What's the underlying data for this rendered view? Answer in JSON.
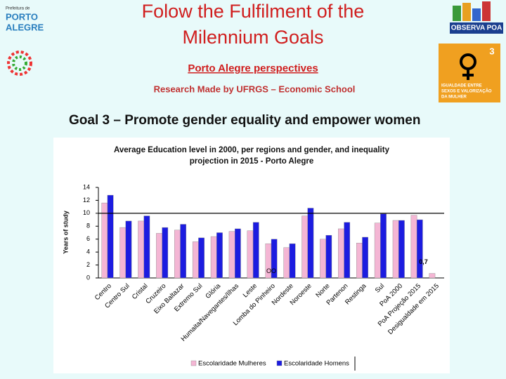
{
  "slide": {
    "title": [
      "Folow the Fulfilment of the",
      "Milennium Goals"
    ],
    "subtitle": "Porto Alegre perspectives",
    "research": "Research Made by UFRGS – Economic School",
    "goal": "Goal 3 – Promote gender equality and empower women"
  },
  "logos": {
    "city": [
      "Prefeitura de",
      "PORTO",
      "ALEGRE"
    ],
    "observa": "OBSERVA POA",
    "goal_number": "3",
    "goal_badge": [
      "IGUALDADE ENTRE",
      "SEXOS E VALORIZAÇÃO",
      "DA MULHER"
    ]
  },
  "chart_data": {
    "type": "bar",
    "title": [
      "Average Education level in 2000, per regions and gender, and inequality",
      "projection in 2015 - Porto Alegre"
    ],
    "y_label": "Years of study",
    "categories": [
      "Centro",
      "Centro Sul",
      "Cristal",
      "Cruzeiro",
      "Eixo Baltazar",
      "Extremo Sul",
      "Glória",
      "Humaita/Navegantes/Ilhas",
      "Leste",
      "Lomba do Pinheiro",
      "Nordeste",
      "Noroeste",
      "Norte",
      "Partenon",
      "Restinga",
      "Sul",
      "PoA 2000",
      "PoA Projeção 2015",
      "Desigualdade em 2015"
    ],
    "series": [
      {
        "name": "Escolaridade Mulheres",
        "color": "#f4b6d4",
        "values": [
          11.6,
          7.8,
          8.8,
          6.9,
          7.4,
          5.6,
          6.4,
          7.2,
          7.3,
          5.3,
          4.7,
          9.6,
          6.0,
          7.6,
          5.4,
          8.5,
          8.9,
          9.7,
          0.7
        ],
        "value_labels": [
          null,
          null,
          null,
          null,
          null,
          null,
          null,
          null,
          null,
          null,
          null,
          null,
          null,
          null,
          null,
          null,
          null,
          null,
          "0,7"
        ]
      },
      {
        "name": "Escolaridade Homens",
        "color": "#1c1ce0",
        "values": [
          12.8,
          8.8,
          9.6,
          7.8,
          8.3,
          6.2,
          7.0,
          7.6,
          8.6,
          6.0,
          5.3,
          10.8,
          6.6,
          8.6,
          6.3,
          9.9,
          8.9,
          9.0,
          null
        ]
      }
    ],
    "reference_line": 10,
    "annotation": "OO",
    "ylim": [
      0,
      14
    ],
    "yticks": [
      0,
      2,
      4,
      6,
      8,
      10,
      12,
      14
    ],
    "grid": false,
    "legend": "bottom"
  }
}
